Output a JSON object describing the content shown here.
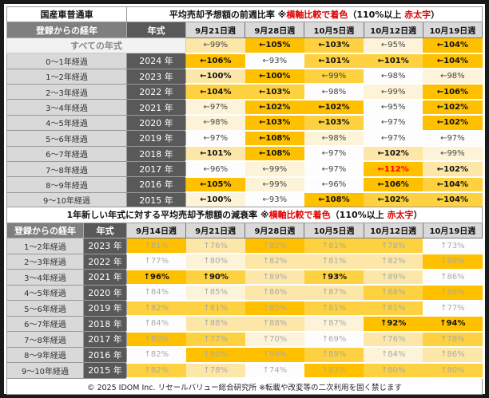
{
  "colors": {
    "L0": "#fdfdfd",
    "L1": "#fdf3d8",
    "L2": "#fde7a8",
    "L3": "#fdd13f",
    "L4": "#ffc000",
    "highlight_text": "#e00000"
  },
  "top": {
    "corner": "国産車普通車",
    "title_a": "平均売却予想額の前週比率 ※",
    "title_red1": "横軸比較で着色",
    "title_b": "（110%以上 ",
    "title_red2": "赤太字",
    "title_c": "）",
    "h_label": "登録からの経年",
    "h_year": "年式",
    "weeks": [
      "9月21日週",
      "9月28日週",
      "10月5日週",
      "10月12日週",
      "10月19日週"
    ],
    "all_label": "すべての年式",
    "all_cells": [
      {
        "v": "←99%",
        "l": 2
      },
      {
        "v": "←105%",
        "l": 4
      },
      {
        "v": "←103%",
        "l": 3
      },
      {
        "v": "←95%",
        "l": 1
      },
      {
        "v": "←104%",
        "l": 4
      }
    ],
    "rows": [
      {
        "label": "0～1年経過",
        "year": "2024 年",
        "cells": [
          {
            "v": "←106%",
            "l": 4
          },
          {
            "v": "←93%",
            "l": 0
          },
          {
            "v": "←101%",
            "l": 3
          },
          {
            "v": "←101%",
            "l": 3
          },
          {
            "v": "←104%",
            "l": 4
          }
        ]
      },
      {
        "label": "1～2年経過",
        "year": "2023 年",
        "cells": [
          {
            "v": "←100%",
            "l": 2
          },
          {
            "v": "←100%",
            "l": 4
          },
          {
            "v": "←99%",
            "l": 3
          },
          {
            "v": "←98%",
            "l": 0
          },
          {
            "v": "←98%",
            "l": 1
          }
        ]
      },
      {
        "label": "2～3年経過",
        "year": "2022 年",
        "cells": [
          {
            "v": "←104%",
            "l": 3
          },
          {
            "v": "←103%",
            "l": 3
          },
          {
            "v": "←98%",
            "l": 0
          },
          {
            "v": "←99%",
            "l": 1
          },
          {
            "v": "←106%",
            "l": 4
          }
        ]
      },
      {
        "label": "3～4年経過",
        "year": "2021 年",
        "cells": [
          {
            "v": "←97%",
            "l": 1
          },
          {
            "v": "←102%",
            "l": 4
          },
          {
            "v": "←102%",
            "l": 4
          },
          {
            "v": "←95%",
            "l": 0
          },
          {
            "v": "←102%",
            "l": 4
          }
        ]
      },
      {
        "label": "4～5年経過",
        "year": "2020 年",
        "cells": [
          {
            "v": "←98%",
            "l": 1
          },
          {
            "v": "←103%",
            "l": 4
          },
          {
            "v": "←103%",
            "l": 3
          },
          {
            "v": "←97%",
            "l": 0
          },
          {
            "v": "←102%",
            "l": 4
          }
        ]
      },
      {
        "label": "5～6年経過",
        "year": "2019 年",
        "cells": [
          {
            "v": "←97%",
            "l": 0
          },
          {
            "v": "←108%",
            "l": 4
          },
          {
            "v": "←98%",
            "l": 1
          },
          {
            "v": "←97%",
            "l": 0
          },
          {
            "v": "←97%",
            "l": 0
          }
        ]
      },
      {
        "label": "6～7年経過",
        "year": "2018 年",
        "cells": [
          {
            "v": "←101%",
            "l": 2
          },
          {
            "v": "←108%",
            "l": 4
          },
          {
            "v": "←97%",
            "l": 0
          },
          {
            "v": "←102%",
            "l": 2
          },
          {
            "v": "←99%",
            "l": 1
          }
        ]
      },
      {
        "label": "7～8年経過",
        "year": "2017 年",
        "cells": [
          {
            "v": "←96%",
            "l": 0
          },
          {
            "v": "←99%",
            "l": 1
          },
          {
            "v": "←97%",
            "l": 0
          },
          {
            "v": "←112%",
            "l": 4,
            "red": true
          },
          {
            "v": "←102%",
            "l": 2
          }
        ]
      },
      {
        "label": "8～9年経過",
        "year": "2016 年",
        "cells": [
          {
            "v": "←105%",
            "l": 4
          },
          {
            "v": "←99%",
            "l": 1
          },
          {
            "v": "←96%",
            "l": 0
          },
          {
            "v": "←106%",
            "l": 4
          },
          {
            "v": "←104%",
            "l": 3
          }
        ]
      },
      {
        "label": "9～10年経過",
        "year": "2015 年",
        "cells": [
          {
            "v": "←100%",
            "l": 1
          },
          {
            "v": "←93%",
            "l": 0
          },
          {
            "v": "←108%",
            "l": 4
          },
          {
            "v": "←102%",
            "l": 3
          },
          {
            "v": "←104%",
            "l": 3
          }
        ]
      }
    ]
  },
  "bottom": {
    "title_a": "1年新しい年式に対する平均売却予想額の減衰率  ※",
    "title_red1": "横軸比較で着色",
    "title_b": "（110%以上 ",
    "title_red2": "赤太字",
    "title_c": "）",
    "h_label": "登録からの経年",
    "h_year": "年式",
    "weeks": [
      "9月14日週",
      "9月21日週",
      "9月28日週",
      "10月5日週",
      "10月12日週",
      "10月19日週"
    ],
    "rows": [
      {
        "label": "1～2年経過",
        "year": "2023 年",
        "cells": [
          {
            "v": "↑81%",
            "l": 4
          },
          {
            "v": "↑76%",
            "l": 2
          },
          {
            "v": "↑82%",
            "l": 4
          },
          {
            "v": "↑81%",
            "l": 3
          },
          {
            "v": "↑78%",
            "l": 3
          },
          {
            "v": "↑73%",
            "l": 0
          }
        ]
      },
      {
        "label": "2～3年経過",
        "year": "2022 年",
        "cells": [
          {
            "v": "↑77%",
            "l": 0
          },
          {
            "v": "↑80%",
            "l": 1
          },
          {
            "v": "↑82%",
            "l": 2
          },
          {
            "v": "↑81%",
            "l": 2
          },
          {
            "v": "↑82%",
            "l": 2
          },
          {
            "v": "↑89%",
            "l": 4
          }
        ]
      },
      {
        "label": "3～4年経過",
        "year": "2021 年",
        "cells": [
          {
            "v": "↑96%",
            "l": 4,
            "bold": true
          },
          {
            "v": "↑90%",
            "l": 3,
            "bold": true
          },
          {
            "v": "↑89%",
            "l": 2
          },
          {
            "v": "↑93%",
            "l": 3,
            "bold": true
          },
          {
            "v": "↑89%",
            "l": 2
          },
          {
            "v": "↑86%",
            "l": 0
          }
        ]
      },
      {
        "label": "4～5年経過",
        "year": "2020 年",
        "cells": [
          {
            "v": "↑84%",
            "l": 0
          },
          {
            "v": "↑85%",
            "l": 1
          },
          {
            "v": "↑86%",
            "l": 2
          },
          {
            "v": "↑87%",
            "l": 2
          },
          {
            "v": "↑88%",
            "l": 3
          },
          {
            "v": "↑88%",
            "l": 4
          }
        ]
      },
      {
        "label": "5～6年経過",
        "year": "2019 年",
        "cells": [
          {
            "v": "↑82%",
            "l": 3
          },
          {
            "v": "↑81%",
            "l": 3
          },
          {
            "v": "↑85%",
            "l": 4
          },
          {
            "v": "↑81%",
            "l": 3
          },
          {
            "v": "↑81%",
            "l": 3
          },
          {
            "v": "↑77%",
            "l": 0
          }
        ]
      },
      {
        "label": "6～7年経過",
        "year": "2018 年",
        "cells": [
          {
            "v": "↑84%",
            "l": 0
          },
          {
            "v": "↑88%",
            "l": 2
          },
          {
            "v": "↑88%",
            "l": 2
          },
          {
            "v": "↑87%",
            "l": 1
          },
          {
            "v": "↑92%",
            "l": 4,
            "bold": true
          },
          {
            "v": "↑94%",
            "l": 4,
            "bold": true
          }
        ]
      },
      {
        "label": "7～8年経過",
        "year": "2017 年",
        "cells": [
          {
            "v": "↑80%",
            "l": 4
          },
          {
            "v": "↑77%",
            "l": 3
          },
          {
            "v": "↑70%",
            "l": 1
          },
          {
            "v": "↑69%",
            "l": 0
          },
          {
            "v": "↑76%",
            "l": 2
          },
          {
            "v": "↑78%",
            "l": 3
          }
        ]
      },
      {
        "label": "8～9年経過",
        "year": "2016 年",
        "cells": [
          {
            "v": "↑82%",
            "l": 0
          },
          {
            "v": "↑90%",
            "l": 4
          },
          {
            "v": "↑90%",
            "l": 4
          },
          {
            "v": "↑89%",
            "l": 3
          },
          {
            "v": "↑84%",
            "l": 1
          },
          {
            "v": "↑86%",
            "l": 2
          }
        ]
      },
      {
        "label": "9～10年経過",
        "year": "2015 年",
        "cells": [
          {
            "v": "↑82%",
            "l": 3
          },
          {
            "v": "↑78%",
            "l": 2
          },
          {
            "v": "↑74%",
            "l": 0
          },
          {
            "v": "↑83%",
            "l": 4
          },
          {
            "v": "↑80%",
            "l": 3
          },
          {
            "v": "↑80%",
            "l": 3
          }
        ]
      }
    ],
    "footer": "© 2025 IDOM Inc. リセールバリュー総合研究所 ※転載や改変等の二次利用を固く禁じます"
  }
}
